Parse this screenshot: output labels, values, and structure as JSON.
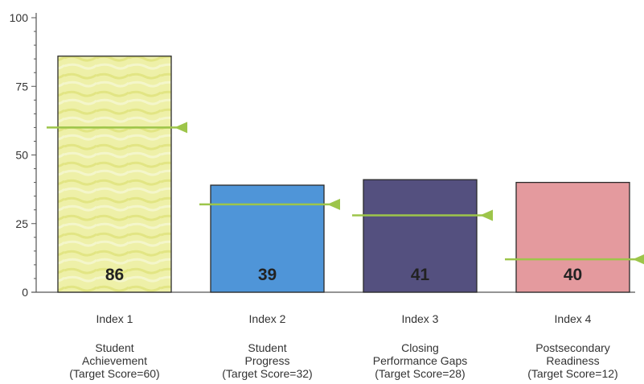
{
  "chart_data": {
    "type": "bar",
    "title": "",
    "xlabel": "",
    "ylabel": "",
    "ylim": [
      0,
      100
    ],
    "yticks": [
      0,
      25,
      50,
      75,
      100
    ],
    "grid": false,
    "categories": [
      {
        "index": "Index 1",
        "lines": [
          "Student",
          "Achievement",
          "(Target Score=60)"
        ]
      },
      {
        "index": "Index 2",
        "lines": [
          "Student",
          "Progress",
          "(Target Score=32)"
        ]
      },
      {
        "index": "Index 3",
        "lines": [
          "Closing",
          "Performance Gaps",
          "(Target Score=28)"
        ]
      },
      {
        "index": "Index 4",
        "lines": [
          "Postsecondary",
          "Readiness",
          "(Target Score=12)"
        ]
      }
    ],
    "values": [
      86,
      39,
      41,
      40
    ],
    "value_labels": [
      "86",
      "39",
      "41",
      "40"
    ],
    "targets": [
      60,
      32,
      28,
      12
    ],
    "bar_colors": [
      "#e6e89a",
      "#4f95d8",
      "#54507f",
      "#e49a9e"
    ],
    "target_color": "#9dc54a"
  }
}
